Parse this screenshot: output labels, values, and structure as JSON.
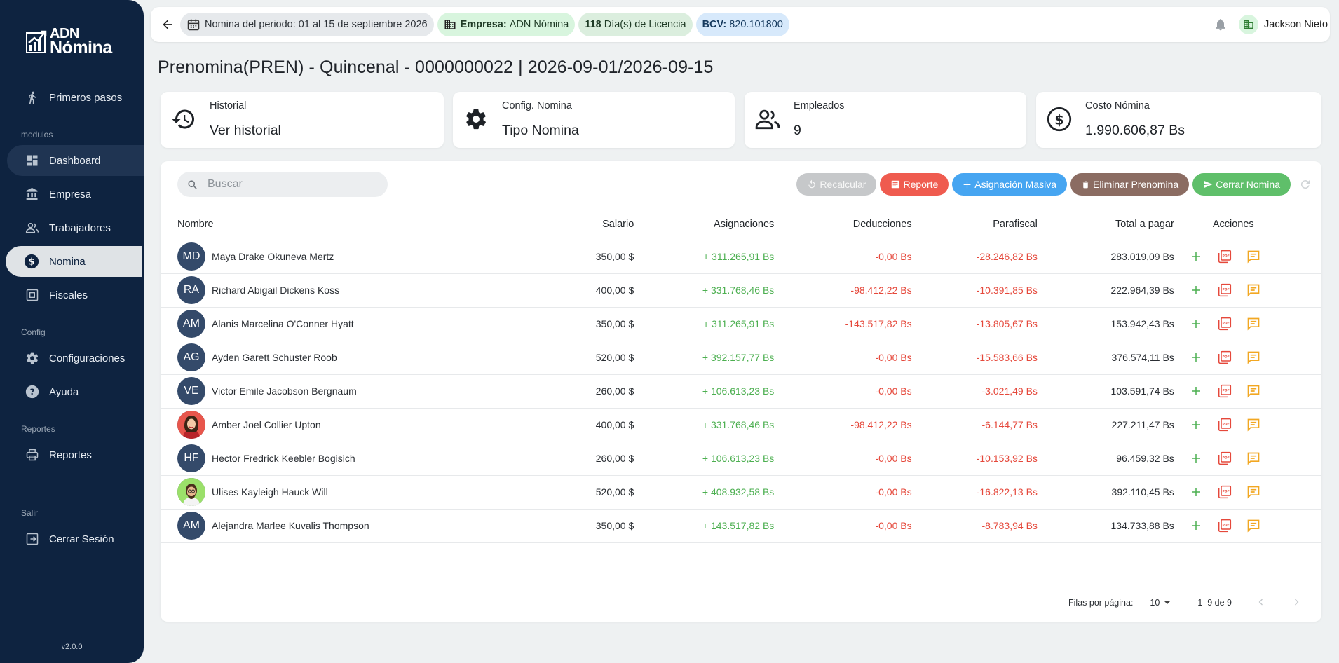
{
  "brand": {
    "line1": "ADN",
    "line2": "Nómina"
  },
  "sidebar": {
    "items": [
      {
        "label": "Primeros pasos",
        "icon": "walking-person-icon"
      },
      {
        "label": "Dashboard",
        "icon": "dashboard-icon"
      },
      {
        "label": "Empresa",
        "icon": "bank-icon"
      },
      {
        "label": "Trabajadores",
        "icon": "people-icon"
      },
      {
        "label": "Nomina",
        "icon": "dollar-circle-icon"
      },
      {
        "label": "Fiscales",
        "icon": "document-icon"
      },
      {
        "label": "Configuraciones",
        "icon": "gear-icon"
      },
      {
        "label": "Ayuda",
        "icon": "help-icon"
      },
      {
        "label": "Reportes",
        "icon": "printer-icon"
      },
      {
        "label": "Cerrar Sesión",
        "icon": "logout-icon"
      }
    ],
    "sections": {
      "modulos": "modulos",
      "config": "Config",
      "reportes": "Reportes",
      "salir": "Salir"
    },
    "version": "v2.0.0"
  },
  "topbar": {
    "period": "Nomina del periodo: 01 al 15 de septiembre 2026",
    "empresa_label": "Empresa:",
    "empresa_value": "ADN Nómina",
    "licencia_count": "118",
    "licencia_text": "Día(s) de Licencia",
    "bcv_label": "BCV:",
    "bcv_value": "820.101800",
    "user": "Jackson Nieto"
  },
  "page": {
    "title": "Prenomina(PREN) - Quincenal - 0000000022 | 2026-09-01/2026-09-15"
  },
  "cards": [
    {
      "label": "Historial",
      "value": "Ver historial"
    },
    {
      "label": "Config. Nomina",
      "value": "Tipo Nomina"
    },
    {
      "label": "Empleados",
      "value": "9"
    },
    {
      "label": "Costo Nómina",
      "value": "1.990.606,87 Bs"
    }
  ],
  "search": {
    "placeholder": "Buscar"
  },
  "actions": {
    "recalcular": "Recalcular",
    "reporte": "Reporte",
    "masiva": "Asignación Masiva",
    "eliminar": "Eliminar Prenomina",
    "cerrar": "Cerrar Nomina"
  },
  "table": {
    "headers": [
      "Nombre",
      "Salario",
      "Asignaciones",
      "Deducciones",
      "Parafiscal",
      "Total a pagar",
      "Acciones"
    ],
    "rows": [
      {
        "initials": "MD",
        "photo": "",
        "name": "Maya Drake Okuneva Mertz",
        "salario": "350,00 $",
        "asignaciones": "+ 311.265,91 Bs",
        "deducciones": "-0,00 Bs",
        "parafiscal": "-28.246,82 Bs",
        "total": "283.019,09 Bs"
      },
      {
        "initials": "RA",
        "photo": "",
        "name": "Richard Abigail Dickens Koss",
        "salario": "400,00 $",
        "asignaciones": "+ 331.768,46 Bs",
        "deducciones": "-98.412,22 Bs",
        "parafiscal": "-10.391,85 Bs",
        "total": "222.964,39 Bs"
      },
      {
        "initials": "AM",
        "photo": "",
        "name": "Alanis Marcelina O'Conner Hyatt",
        "salario": "350,00 $",
        "asignaciones": "+ 311.265,91 Bs",
        "deducciones": "-143.517,82 Bs",
        "parafiscal": "-13.805,67 Bs",
        "total": "153.942,43 Bs"
      },
      {
        "initials": "AG",
        "photo": "",
        "name": "Ayden Garett Schuster Roob",
        "salario": "520,00 $",
        "asignaciones": "+ 392.157,77 Bs",
        "deducciones": "-0,00 Bs",
        "parafiscal": "-15.583,66 Bs",
        "total": "376.574,11 Bs"
      },
      {
        "initials": "VE",
        "photo": "",
        "name": "Victor Emile Jacobson Bergnaum",
        "salario": "260,00 $",
        "asignaciones": "+ 106.613,23 Bs",
        "deducciones": "-0,00 Bs",
        "parafiscal": "-3.021,49 Bs",
        "total": "103.591,74 Bs"
      },
      {
        "initials": "",
        "photo": "woman-avatar",
        "name": "Amber Joel Collier Upton",
        "salario": "400,00 $",
        "asignaciones": "+ 331.768,46 Bs",
        "deducciones": "-98.412,22 Bs",
        "parafiscal": "-6.144,77 Bs",
        "total": "227.211,47 Bs"
      },
      {
        "initials": "HF",
        "photo": "",
        "name": "Hector Fredrick Keebler Bogisich",
        "salario": "260,00 $",
        "asignaciones": "+ 106.613,23 Bs",
        "deducciones": "-0,00 Bs",
        "parafiscal": "-10.153,92 Bs",
        "total": "96.459,32 Bs"
      },
      {
        "initials": "",
        "photo": "man-avatar",
        "name": "Ulises Kayleigh Hauck Will",
        "salario": "520,00 $",
        "asignaciones": "+ 408.932,58 Bs",
        "deducciones": "-0,00 Bs",
        "parafiscal": "-16.822,13 Bs",
        "total": "392.110,45 Bs"
      },
      {
        "initials": "AM",
        "photo": "",
        "name": "Alejandra Marlee Kuvalis Thompson",
        "salario": "350,00 $",
        "asignaciones": "+ 143.517,82 Bs",
        "deducciones": "-0,00 Bs",
        "parafiscal": "-8.783,94 Bs",
        "total": "134.733,88 Bs"
      }
    ]
  },
  "pager": {
    "rows_per_page_label": "Filas por página:",
    "rows_per_page": "10",
    "range": "1–9 de 9"
  },
  "colors": {
    "sidebar": "#0e2340",
    "positive": "#4caf50",
    "negative": "#e5483b",
    "reporte": "#ef5b4f",
    "masiva": "#46a5f1",
    "eliminar": "#8b6c62",
    "cerrar": "#5fbf6a"
  }
}
